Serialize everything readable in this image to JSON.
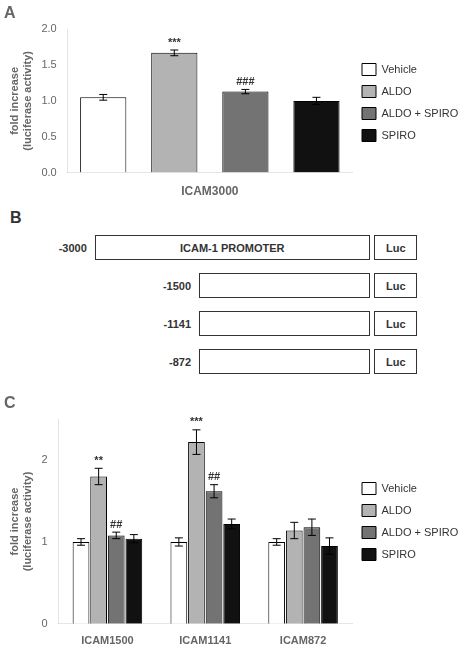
{
  "chart_data": [
    {
      "type": "bar",
      "title": "A",
      "categories": [
        "Vehicle",
        "ALDO",
        "ALDO + SPIRO",
        "SPIRO"
      ],
      "values": [
        1.05,
        1.67,
        1.13,
        1.0
      ],
      "errors": [
        0.04,
        0.04,
        0.03,
        0.05
      ],
      "colors": [
        "#ffffff",
        "#b3b3b3",
        "#737373",
        "#111111"
      ],
      "x_label": "ICAM3000",
      "y_label": "fold increase\n(luciferase activity)",
      "ylim": [
        0.0,
        2.0
      ],
      "yticks": [
        {
          "value": 0.0,
          "label": "0.0"
        },
        {
          "value": 0.5,
          "label": "0.5"
        },
        {
          "value": 1.0,
          "label": "1.0"
        },
        {
          "value": 1.5,
          "label": "1.5"
        },
        {
          "value": 2.0,
          "label": "2.0"
        }
      ],
      "annotations": [
        {
          "category": "ALDO",
          "text": "***"
        },
        {
          "category": "ALDO + SPIRO",
          "text": "###"
        }
      ],
      "tick_labels": "y",
      "grid": false,
      "legend": "right"
    },
    {
      "type": "diagram",
      "title": "B",
      "categories": [
        "-3000",
        "-1500",
        "-1141",
        "-872"
      ],
      "annotations": [
        {
          "category": "-3000",
          "text": "ICAM-1 PROMOTER"
        },
        {
          "category": "-3000",
          "text": "Luc"
        },
        {
          "category": "-1500",
          "text": "Luc"
        },
        {
          "category": "-1141",
          "text": "Luc"
        },
        {
          "category": "-872",
          "text": "Luc"
        }
      ]
    },
    {
      "type": "bar",
      "title": "C",
      "categories": [
        "ICAM1500",
        "ICAM1141",
        "ICAM872"
      ],
      "series": [
        {
          "name": "Vehicle",
          "color": "#ffffff",
          "values": [
            1.0,
            1.0,
            1.0
          ],
          "errors": [
            0.04,
            0.05,
            0.04
          ]
        },
        {
          "name": "ALDO",
          "color": "#b3b3b3",
          "values": [
            1.8,
            2.22,
            1.14
          ],
          "errors": [
            0.1,
            0.15,
            0.1
          ]
        },
        {
          "name": "ALDO + SPIRO",
          "color": "#737373",
          "values": [
            1.08,
            1.62,
            1.18
          ],
          "errors": [
            0.04,
            0.08,
            0.1
          ]
        },
        {
          "name": "SPIRO",
          "color": "#111111",
          "values": [
            1.04,
            1.22,
            0.95
          ],
          "errors": [
            0.05,
            0.06,
            0.1
          ]
        }
      ],
      "y_label": "fold increase\n(luciferase activity)",
      "ylim": [
        0.0,
        2.5
      ],
      "yticks": [
        0,
        1,
        2
      ],
      "annotations": [
        {
          "category": "ICAM1500",
          "series": "ALDO",
          "text": "**"
        },
        {
          "category": "ICAM1500",
          "series": "ALDO + SPIRO",
          "text": "##"
        },
        {
          "category": "ICAM1141",
          "series": "ALDO",
          "text": "***"
        },
        {
          "category": "ICAM1141",
          "series": "ALDO + SPIRO",
          "text": "##"
        }
      ],
      "grid": false,
      "legend": "right"
    }
  ]
}
